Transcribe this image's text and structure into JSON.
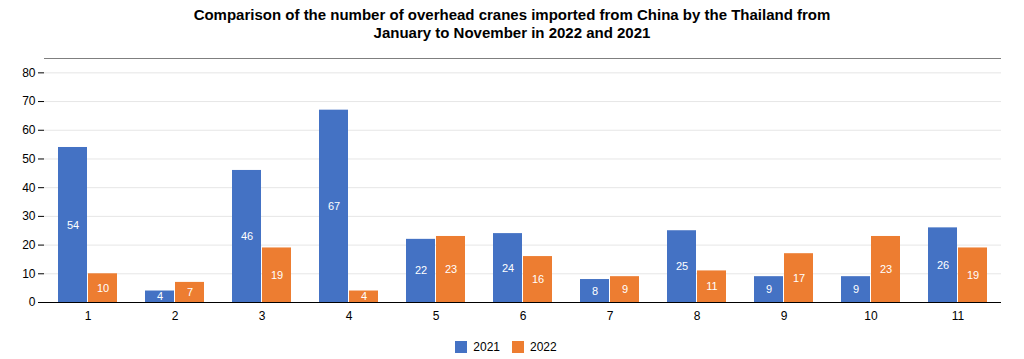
{
  "chart_data": {
    "type": "bar",
    "title": "Comparison of the number of overhead cranes imported from China by the Thailand from\nJanuary to November in 2022 and 2021",
    "categories": [
      "1",
      "2",
      "3",
      "4",
      "5",
      "6",
      "7",
      "8",
      "9",
      "10",
      "11"
    ],
    "series": [
      {
        "name": "2021",
        "color": "#4472C4",
        "values": [
          54,
          4,
          46,
          67,
          22,
          24,
          8,
          25,
          9,
          9,
          26
        ]
      },
      {
        "name": "2022",
        "color": "#ED7D31",
        "values": [
          10,
          7,
          19,
          4,
          23,
          16,
          9,
          11,
          17,
          23,
          19
        ]
      }
    ],
    "ylim": [
      0,
      85
    ],
    "yticks": [
      0,
      10,
      20,
      30,
      40,
      50,
      60,
      70,
      80
    ],
    "grid": true,
    "legend": "bottom",
    "data_labels": true
  }
}
